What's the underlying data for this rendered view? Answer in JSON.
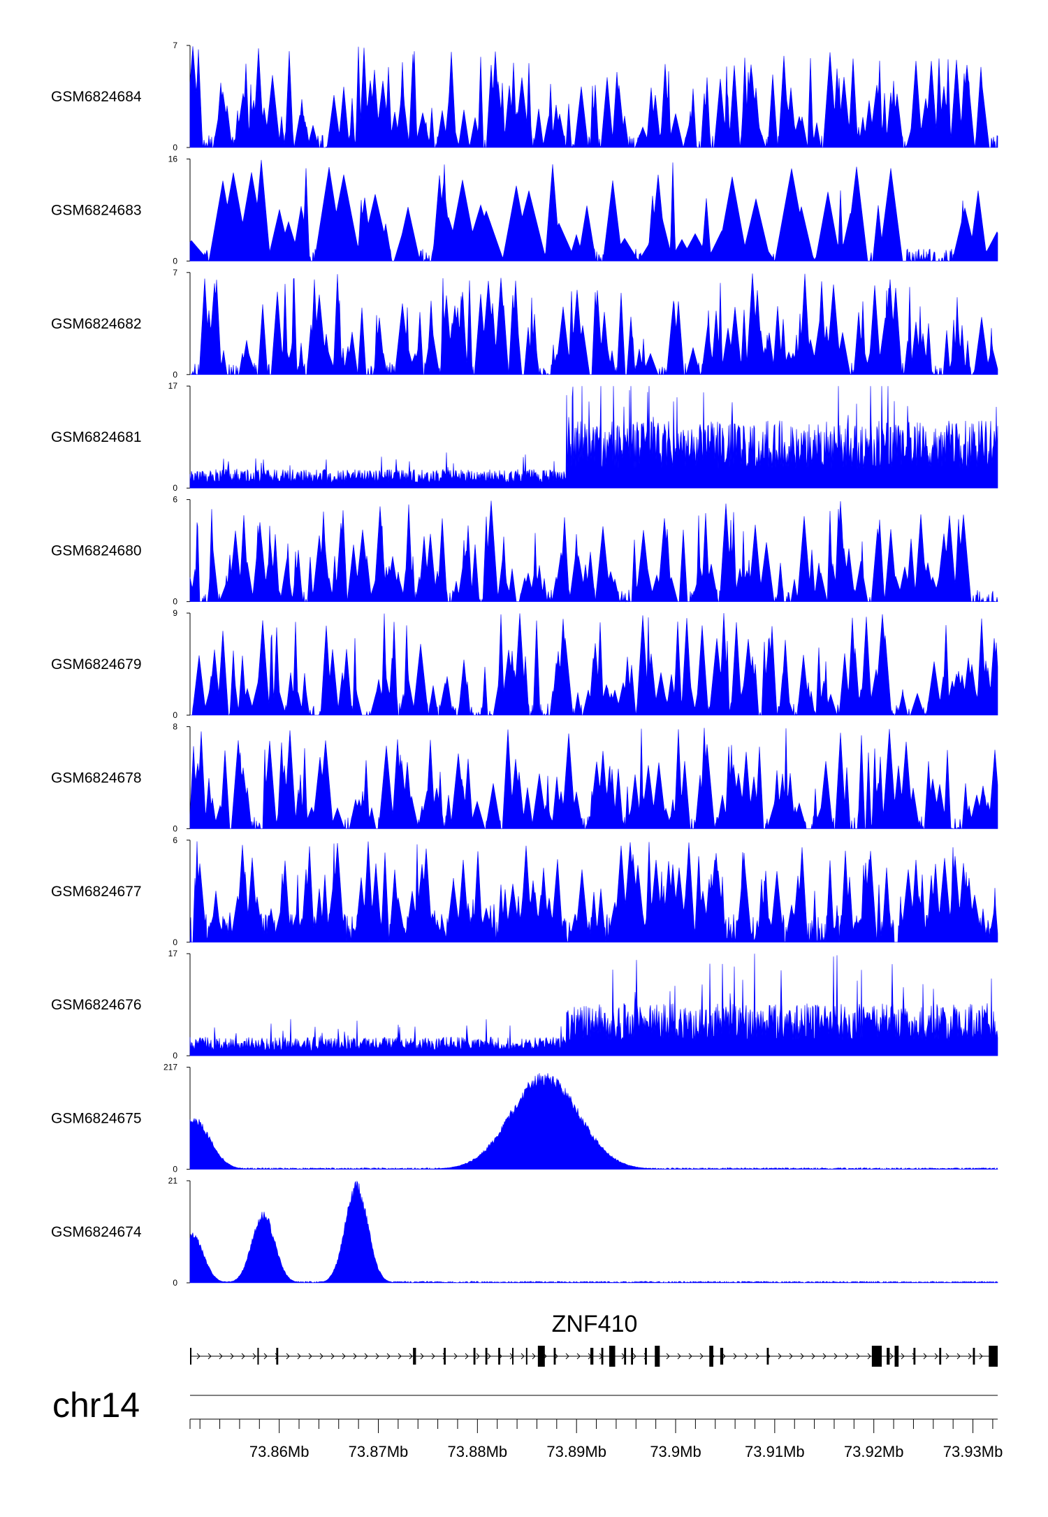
{
  "chart_data": {
    "type": "area",
    "region": {
      "chromosome": "chr14",
      "start_mb": 73.851,
      "end_mb": 73.9325
    },
    "colors": {
      "signal": "#0000ff",
      "gene": "#000000",
      "axis": "#000000"
    },
    "tracks": [
      {
        "name": "GSM6824684",
        "ymax": 7,
        "ymin": 0,
        "ymax_label": "7",
        "ymin_label": "0",
        "profile": "sparse",
        "peaks": []
      },
      {
        "name": "GSM6824683",
        "ymax": 16,
        "ymin": 0,
        "ymax_label": "16",
        "ymin_label": "0",
        "profile": "spiky",
        "peaks": []
      },
      {
        "name": "GSM6824682",
        "ymax": 7,
        "ymin": 0,
        "ymax_label": "7",
        "ymin_label": "0",
        "profile": "sparse",
        "peaks": []
      },
      {
        "name": "GSM6824681",
        "ymax": 17,
        "ymin": 0,
        "ymax_label": "17",
        "ymin_label": "0",
        "profile": "step",
        "peaks": [],
        "low_level": 2.5,
        "high_level": 9,
        "step_at_mb": 73.889
      },
      {
        "name": "GSM6824680",
        "ymax": 6,
        "ymin": 0,
        "ymax_label": "6",
        "ymin_label": "0",
        "profile": "sparse",
        "peaks": []
      },
      {
        "name": "GSM6824679",
        "ymax": 9,
        "ymin": 0,
        "ymax_label": "9",
        "ymin_label": "0",
        "profile": "sparse",
        "peaks": []
      },
      {
        "name": "GSM6824678",
        "ymax": 8,
        "ymin": 0,
        "ymax_label": "8",
        "ymin_label": "0",
        "profile": "sparse",
        "peaks": []
      },
      {
        "name": "GSM6824677",
        "ymax": 6,
        "ymin": 0,
        "ymax_label": "6",
        "ymin_label": "0",
        "profile": "dense",
        "peaks": []
      },
      {
        "name": "GSM6824676",
        "ymax": 17,
        "ymin": 0,
        "ymax_label": "17",
        "ymin_label": "0",
        "profile": "step",
        "peaks": [],
        "low_level": 2.5,
        "high_level": 7,
        "step_at_mb": 73.889
      },
      {
        "name": "GSM6824675",
        "ymax": 217,
        "ymin": 0,
        "ymax_label": "217",
        "ymin_label": "0",
        "profile": "peaks",
        "peaks": [
          {
            "mb": 73.8513,
            "height": 115,
            "width_mb": 0.0003
          },
          {
            "mb": 73.8868,
            "height": 210,
            "width_mb": 0.0006
          }
        ]
      },
      {
        "name": "GSM6824674",
        "ymax": 21,
        "ymin": 0,
        "ymax_label": "21",
        "ymin_label": "0",
        "profile": "peaks",
        "peaks": [
          {
            "mb": 73.8512,
            "height": 10.5,
            "width_mb": 0.0002
          },
          {
            "mb": 73.8584,
            "height": 15,
            "width_mb": 0.0002
          },
          {
            "mb": 73.8678,
            "height": 21,
            "width_mb": 0.0002
          }
        ]
      }
    ],
    "gene": {
      "name": "ZNF410",
      "strand": "+",
      "start_mb": 73.851,
      "end_mb": 73.9325,
      "exons": [
        {
          "start": 73.851,
          "end": 73.8511
        },
        {
          "start": 73.8578,
          "end": 73.8579
        },
        {
          "start": 73.8597,
          "end": 73.8599
        },
        {
          "start": 73.8735,
          "end": 73.8738
        },
        {
          "start": 73.8766,
          "end": 73.8768
        },
        {
          "start": 73.8796,
          "end": 73.8798
        },
        {
          "start": 73.8808,
          "end": 73.881
        },
        {
          "start": 73.8821,
          "end": 73.8823
        },
        {
          "start": 73.8835,
          "end": 73.8836
        },
        {
          "start": 73.8849,
          "end": 73.885
        },
        {
          "start": 73.8861,
          "end": 73.8868
        },
        {
          "start": 73.8877,
          "end": 73.8879
        },
        {
          "start": 73.8914,
          "end": 73.8917
        },
        {
          "start": 73.8925,
          "end": 73.8927
        },
        {
          "start": 73.8933,
          "end": 73.8939
        },
        {
          "start": 73.8948,
          "end": 73.895
        },
        {
          "start": 73.8955,
          "end": 73.8957
        },
        {
          "start": 73.8969,
          "end": 73.8971
        },
        {
          "start": 73.8979,
          "end": 73.8984
        },
        {
          "start": 73.9034,
          "end": 73.9038
        },
        {
          "start": 73.9045,
          "end": 73.9048
        },
        {
          "start": 73.9092,
          "end": 73.9094
        },
        {
          "start": 73.9198,
          "end": 73.9208
        },
        {
          "start": 73.9213,
          "end": 73.9216
        },
        {
          "start": 73.9221,
          "end": 73.9225
        },
        {
          "start": 73.924,
          "end": 73.9242
        },
        {
          "start": 73.9266,
          "end": 73.9268
        },
        {
          "start": 73.93,
          "end": 73.9302
        },
        {
          "start": 73.9316,
          "end": 73.9325
        }
      ]
    },
    "axis": {
      "chromosome_label": "chr14",
      "ticks": [
        {
          "mb": 73.86,
          "label": "73.86Mb"
        },
        {
          "mb": 73.87,
          "label": "73.87Mb"
        },
        {
          "mb": 73.88,
          "label": "73.88Mb"
        },
        {
          "mb": 73.89,
          "label": "73.89Mb"
        },
        {
          "mb": 73.9,
          "label": "73.9Mb"
        },
        {
          "mb": 73.91,
          "label": "73.91Mb"
        },
        {
          "mb": 73.92,
          "label": "73.92Mb"
        },
        {
          "mb": 73.93,
          "label": "73.93Mb"
        }
      ],
      "minor_tick_step_mb": 0.002
    }
  }
}
